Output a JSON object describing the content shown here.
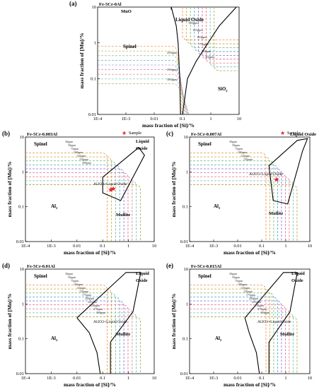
{
  "chart_data": [
    {
      "type": "line",
      "panel": "(a)",
      "title": "Fe-5Cr-0Al",
      "xlabel": "mass fraction of [Si]/%",
      "ylabel": "mass fraction of [Mn]/%",
      "xscale": "log",
      "yscale": "log",
      "xlim": [
        0.0001,
        10
      ],
      "ylim": [
        0.01,
        10
      ],
      "xticks": [
        "1E-4",
        "1E-3",
        "0.01",
        "0.1",
        "1",
        "10"
      ],
      "yticks": [
        "0.01",
        "0.1",
        "1",
        "10"
      ],
      "regions": [
        "MnO",
        "Liquid Oxide",
        "Spinel",
        "SiO2"
      ],
      "region_sub": "2",
      "contour_labels": [
        "150ppm",
        "125ppm",
        "100ppm",
        "75ppm",
        "50ppm",
        "30ppm",
        "200ppm",
        "250ppm",
        "300ppm"
      ],
      "boundaries": [
        {
          "name": "spinel-liquid",
          "points": [
            [
              0.04,
              10
            ],
            [
              0.06,
              3
            ],
            [
              0.07,
              1
            ],
            [
              0.075,
              0.3
            ],
            [
              0.08,
              0.1
            ],
            [
              0.085,
              0.01
            ]
          ]
        },
        {
          "name": "liquid-sio2",
          "points": [
            [
              8,
              10
            ],
            [
              2,
              3
            ],
            [
              0.8,
              1
            ],
            [
              0.3,
              0.3
            ],
            [
              0.15,
              0.1
            ],
            [
              0.1,
              0.01
            ]
          ]
        }
      ]
    },
    {
      "type": "line",
      "panel": "(b)",
      "title": "Fe-5Cr-0.003Al",
      "xlabel": "mass fraction of [Si]/%",
      "ylabel": "mass fraction of [Mn]/%",
      "xlim": [
        0.0001,
        10
      ],
      "ylim": [
        0.01,
        10
      ],
      "xticks": [
        "1E-4",
        "1E-3",
        "0.01",
        "0.1",
        "1",
        "10"
      ],
      "yticks": [
        "0.01",
        "0.1",
        "1",
        "10"
      ],
      "regions": [
        "Spinel",
        "Liquid",
        "Oxide",
        "Al2O3+Liquid Oxide",
        "Al2O3",
        "Mullite"
      ],
      "region_sub": "2",
      "region_sub2": "3",
      "legend": "Sample",
      "contour_labels": [
        "30ppm",
        "50ppm",
        "75ppm",
        "100ppm",
        "125ppm",
        "150ppm",
        "300ppm"
      ],
      "samples": [
        [
          0.2,
          0.3
        ],
        [
          0.25,
          0.32
        ]
      ]
    },
    {
      "type": "line",
      "panel": "(c)",
      "title": "Fe-5Cr-0.007Al",
      "xlabel": "mass fraction of [Si]/%",
      "ylabel": "mass fraction of [Mn]/%",
      "xlim": [
        0.0001,
        10
      ],
      "ylim": [
        0.01,
        10
      ],
      "xticks": [
        "1E-4",
        "1E-3",
        "0.01",
        "0.1",
        "1",
        "10"
      ],
      "yticks": [
        "0.01",
        "0.1",
        "1",
        "10"
      ],
      "regions": [
        "Spinel",
        "Liquid Oxide",
        "Al2O3+Liquid Oxide",
        "Al2O3",
        "Mullite"
      ],
      "legend": "Sample",
      "contour_labels": [
        "30ppm",
        "50ppm",
        "75ppm",
        "100ppm",
        "125ppm",
        "150ppm"
      ],
      "samples": [
        [
          0.4,
          0.6
        ]
      ]
    },
    {
      "type": "line",
      "panel": "(d)",
      "title": "Fe-5Cr-0.01Al",
      "xlabel": "mass fraction of [Si]/%",
      "ylabel": "mass fraction of [Mn]/%",
      "xlim": [
        0.0001,
        10
      ],
      "ylim": [
        0.01,
        10
      ],
      "xticks": [
        "1E-4",
        "1E-3",
        "0.01",
        "0.1",
        "1",
        "10"
      ],
      "yticks": [
        "0.01",
        "0.1",
        "1",
        "10"
      ],
      "regions": [
        "Spinel",
        "Liquid",
        "Oxide",
        "Al2O3+Liquid Oxide",
        "Al2O3",
        "Mullite"
      ],
      "contour_labels": [
        "30ppm",
        "50ppm",
        "75ppm",
        "100ppm",
        "125ppm",
        "150ppm",
        "175ppm",
        "200ppm",
        "225ppm",
        "250ppm",
        "275ppm",
        "300ppm"
      ]
    },
    {
      "type": "line",
      "panel": "(e)",
      "title": "Fe-5Cr-0.015Al",
      "xlabel": "mass fraction of [Si]/%",
      "ylabel": "mass fraction of [Mn]/%",
      "xlim": [
        0.0001,
        10
      ],
      "ylim": [
        0.01,
        10
      ],
      "xticks": [
        "1E-4",
        "1E-3",
        "0.01",
        "0.1",
        "1",
        "10"
      ],
      "yticks": [
        "0.01",
        "0.1",
        "1",
        "10"
      ],
      "regions": [
        "Spinel",
        "Liquid",
        "Oxide",
        "Al2O3+Liquid Oxide",
        "Al2O3",
        "Mullite"
      ],
      "contour_labels": [
        "30ppm",
        "50ppm",
        "75ppm",
        "100ppm",
        "125ppm",
        "150ppm",
        "175ppm",
        "200ppm",
        "225ppm",
        "250ppm",
        "275ppm",
        "300ppm"
      ]
    }
  ],
  "colors": {
    "contours": [
      "#f08a3c",
      "#c9a832",
      "#6bb36b",
      "#4aa3c8",
      "#7a6fd0",
      "#d9629a",
      "#e57373",
      "#5bc0be",
      "#b0a040"
    ],
    "boundary": "#000000",
    "sample": "#e8202a"
  }
}
